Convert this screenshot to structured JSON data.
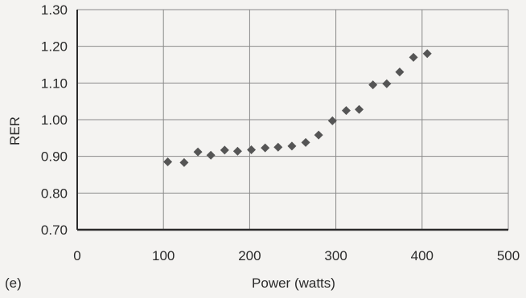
{
  "panel_label": "(e)",
  "chart_data": {
    "type": "scatter",
    "title": "",
    "xlabel": "Power (watts)",
    "ylabel": "RER",
    "xlim": [
      0,
      500
    ],
    "ylim": [
      0.7,
      1.3
    ],
    "x_ticks": [
      "0",
      "100",
      "200",
      "300",
      "400",
      "500"
    ],
    "y_ticks": [
      "0.70",
      "0.80",
      "0.90",
      "1.00",
      "1.10",
      "1.20",
      "1.30"
    ],
    "grid": true,
    "marker": "diamond",
    "marker_color": "#555555",
    "grid_color": "#8a8a8a",
    "axis_color": "#2b2b2b",
    "series": [
      {
        "x": [
          105,
          124,
          140,
          155,
          171,
          186,
          202,
          218,
          233,
          249,
          265,
          280,
          296,
          312,
          327,
          343,
          359,
          374,
          390,
          406
        ],
        "y": [
          0.885,
          0.883,
          0.912,
          0.903,
          0.917,
          0.914,
          0.918,
          0.923,
          0.925,
          0.928,
          0.938,
          0.958,
          0.997,
          1.025,
          1.028,
          1.095,
          1.098,
          1.13,
          1.17,
          1.18
        ]
      }
    ]
  }
}
